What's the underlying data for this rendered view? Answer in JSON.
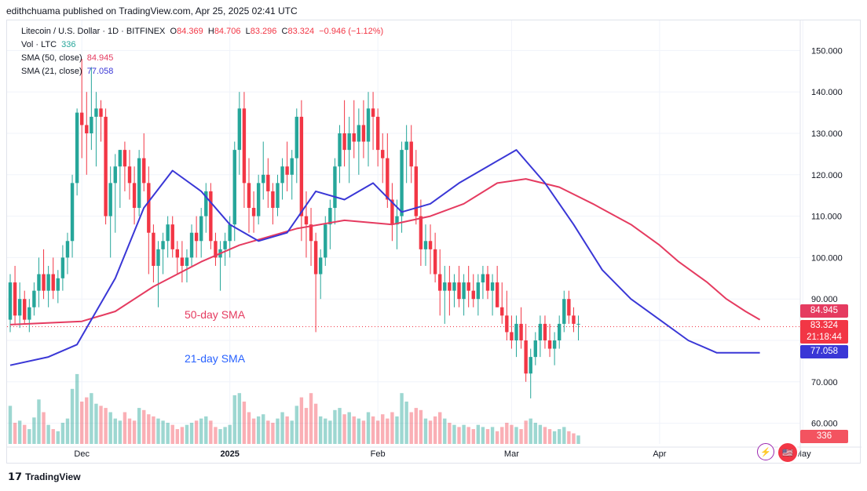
{
  "publisher": "edithchuama published on TradingView.com, Apr 25, 2025 02:41 UTC",
  "legend": {
    "symbol": "Litecoin / U.S. Dollar · 1D · BITFINEX",
    "o_label": "O",
    "o": "84.369",
    "h_label": "H",
    "h": "84.706",
    "l_label": "L",
    "l": "83.296",
    "c_label": "C",
    "c": "83.324",
    "change": "−0.946 (−1.12%)",
    "vol_label": "Vol · LTC",
    "vol": "336",
    "sma50_label": "SMA (50, close)",
    "sma50": "84.945",
    "sma21_label": "SMA (21, close)",
    "sma21": "77.058"
  },
  "annotations": {
    "sma50": "50-day SMA",
    "sma21": "21-day SMA"
  },
  "price_tags": {
    "sma50": "84.945",
    "last_price": "83.324",
    "countdown": "21:18:44",
    "sma21": "77.058",
    "volume": "336"
  },
  "footer": {
    "brand": "TradingView"
  },
  "colors": {
    "up": "#26a69a",
    "down": "#f23645",
    "sma50": "#e53b60",
    "sma21": "#3a37d6"
  },
  "chart_data": {
    "type": "candlestick",
    "ylim": [
      55,
      155
    ],
    "y_ticks": [
      60,
      70,
      80,
      90,
      100,
      110,
      120,
      130,
      140,
      150
    ],
    "y_tick_labels": [
      "60.000",
      "70.000",
      "",
      "90.000",
      "100.000",
      "110.000",
      "120.000",
      "130.000",
      "140.000",
      "150.000"
    ],
    "x_ticks": [
      {
        "label": "Dec",
        "day": 15
      },
      {
        "label": "2025",
        "day": 46
      },
      {
        "label": "Feb",
        "day": 77
      },
      {
        "label": "Mar",
        "day": 105
      },
      {
        "label": "Apr",
        "day": 136
      },
      {
        "label": "May",
        "day": 166
      }
    ],
    "ohlcv": [
      [
        85,
        96,
        82,
        94,
        36
      ],
      [
        94,
        98,
        84,
        86,
        20
      ],
      [
        86,
        94,
        83,
        90,
        22
      ],
      [
        90,
        92,
        84,
        85,
        18
      ],
      [
        85,
        90,
        82,
        88,
        14
      ],
      [
        88,
        94,
        86,
        92,
        25
      ],
      [
        92,
        100,
        88,
        96,
        42
      ],
      [
        96,
        102,
        90,
        92,
        30
      ],
      [
        92,
        98,
        88,
        96,
        18
      ],
      [
        96,
        100,
        90,
        92,
        14
      ],
      [
        92,
        97,
        89,
        95,
        12
      ],
      [
        95,
        103,
        92,
        100,
        20
      ],
      [
        100,
        106,
        96,
        104,
        24
      ],
      [
        104,
        120,
        100,
        118,
        52
      ],
      [
        118,
        136,
        115,
        135,
        66
      ],
      [
        135,
        148,
        124,
        132,
        40
      ],
      [
        132,
        140,
        120,
        130,
        44
      ],
      [
        130,
        146,
        126,
        134,
        48
      ],
      [
        134,
        140,
        122,
        136,
        38
      ],
      [
        136,
        138,
        128,
        134,
        36
      ],
      [
        134,
        136,
        108,
        110,
        34
      ],
      [
        110,
        122,
        100,
        118,
        30
      ],
      [
        118,
        125,
        106,
        122,
        24
      ],
      [
        122,
        126,
        112,
        126,
        22
      ],
      [
        126,
        128,
        116,
        122,
        30
      ],
      [
        122,
        126,
        114,
        118,
        24
      ],
      [
        118,
        122,
        108,
        112,
        22
      ],
      [
        112,
        126,
        110,
        124,
        34
      ],
      [
        124,
        130,
        116,
        118,
        32
      ],
      [
        118,
        122,
        96,
        106,
        28
      ],
      [
        106,
        108,
        94,
        98,
        26
      ],
      [
        98,
        104,
        88,
        102,
        24
      ],
      [
        102,
        106,
        96,
        104,
        22
      ],
      [
        104,
        110,
        100,
        108,
        20
      ],
      [
        108,
        110,
        100,
        102,
        18
      ],
      [
        102,
        104,
        96,
        100,
        14
      ],
      [
        100,
        104,
        94,
        98,
        16
      ],
      [
        98,
        102,
        94,
        100,
        18
      ],
      [
        100,
        108,
        98,
        106,
        20
      ],
      [
        106,
        110,
        100,
        104,
        22
      ],
      [
        104,
        112,
        100,
        110,
        24
      ],
      [
        110,
        118,
        106,
        116,
        26
      ],
      [
        116,
        118,
        102,
        104,
        22
      ],
      [
        104,
        106,
        98,
        100,
        16
      ],
      [
        100,
        104,
        92,
        102,
        14
      ],
      [
        102,
        106,
        98,
        104,
        16
      ],
      [
        104,
        110,
        100,
        108,
        18
      ],
      [
        108,
        128,
        104,
        126,
        46
      ],
      [
        126,
        140,
        120,
        136,
        48
      ],
      [
        136,
        140,
        112,
        118,
        40
      ],
      [
        118,
        124,
        106,
        112,
        30
      ],
      [
        112,
        116,
        106,
        110,
        24
      ],
      [
        110,
        120,
        108,
        118,
        26
      ],
      [
        118,
        128,
        114,
        120,
        28
      ],
      [
        120,
        124,
        112,
        116,
        22
      ],
      [
        116,
        118,
        108,
        112,
        20
      ],
      [
        112,
        120,
        110,
        118,
        24
      ],
      [
        118,
        124,
        114,
        122,
        30
      ],
      [
        122,
        128,
        116,
        120,
        26
      ],
      [
        120,
        126,
        114,
        124,
        22
      ],
      [
        124,
        136,
        118,
        134,
        36
      ],
      [
        134,
        138,
        104,
        110,
        44
      ],
      [
        110,
        116,
        100,
        108,
        34
      ],
      [
        108,
        112,
        98,
        104,
        48
      ],
      [
        104,
        106,
        82,
        96,
        38
      ],
      [
        96,
        102,
        90,
        100,
        26
      ],
      [
        100,
        110,
        98,
        108,
        24
      ],
      [
        108,
        114,
        102,
        112,
        22
      ],
      [
        112,
        124,
        108,
        122,
        32
      ],
      [
        122,
        132,
        118,
        130,
        34
      ],
      [
        130,
        138,
        122,
        126,
        28
      ],
      [
        126,
        134,
        118,
        130,
        30
      ],
      [
        130,
        138,
        124,
        128,
        26
      ],
      [
        128,
        136,
        120,
        132,
        24
      ],
      [
        132,
        138,
        124,
        128,
        22
      ],
      [
        128,
        140,
        122,
        136,
        30
      ],
      [
        136,
        140,
        126,
        134,
        26
      ],
      [
        134,
        136,
        122,
        126,
        22
      ],
      [
        126,
        130,
        118,
        124,
        28
      ],
      [
        124,
        130,
        112,
        114,
        24
      ],
      [
        114,
        118,
        104,
        108,
        30
      ],
      [
        108,
        114,
        102,
        110,
        26
      ],
      [
        110,
        128,
        106,
        126,
        48
      ],
      [
        126,
        132,
        118,
        128,
        40
      ],
      [
        128,
        132,
        118,
        122,
        30
      ],
      [
        122,
        126,
        108,
        110,
        34
      ],
      [
        110,
        114,
        98,
        102,
        32
      ],
      [
        102,
        108,
        98,
        104,
        24
      ],
      [
        104,
        108,
        96,
        102,
        22
      ],
      [
        102,
        106,
        94,
        96,
        26
      ],
      [
        96,
        102,
        86,
        92,
        30
      ],
      [
        92,
        98,
        84,
        94,
        24
      ],
      [
        94,
        98,
        86,
        92,
        20
      ],
      [
        92,
        96,
        88,
        94,
        18
      ],
      [
        94,
        98,
        88,
        90,
        16
      ],
      [
        90,
        96,
        86,
        94,
        18
      ],
      [
        94,
        98,
        88,
        92,
        16
      ],
      [
        92,
        96,
        88,
        90,
        14
      ],
      [
        90,
        96,
        86,
        94,
        18
      ],
      [
        94,
        98,
        90,
        96,
        16
      ],
      [
        96,
        98,
        90,
        92,
        14
      ],
      [
        92,
        96,
        86,
        94,
        16
      ],
      [
        94,
        98,
        88,
        88,
        12
      ],
      [
        88,
        94,
        84,
        86,
        16
      ],
      [
        86,
        92,
        80,
        82,
        20
      ],
      [
        82,
        86,
        78,
        80,
        18
      ],
      [
        80,
        86,
        76,
        84,
        16
      ],
      [
        84,
        88,
        78,
        80,
        14
      ],
      [
        80,
        84,
        70,
        72,
        22
      ],
      [
        72,
        78,
        66,
        76,
        24
      ],
      [
        76,
        82,
        74,
        80,
        20
      ],
      [
        80,
        86,
        76,
        84,
        18
      ],
      [
        84,
        86,
        78,
        80,
        16
      ],
      [
        80,
        84,
        76,
        78,
        14
      ],
      [
        78,
        82,
        74,
        80,
        12
      ],
      [
        80,
        86,
        78,
        84,
        14
      ],
      [
        84,
        92,
        82,
        90,
        16
      ],
      [
        90,
        92,
        84,
        86,
        12
      ],
      [
        86,
        88,
        82,
        84,
        10
      ],
      [
        84,
        86,
        80,
        84,
        8
      ]
    ],
    "sma50": [
      [
        0,
        83.8
      ],
      [
        15,
        84.6
      ],
      [
        22,
        87
      ],
      [
        30,
        93
      ],
      [
        40,
        99
      ],
      [
        48,
        103
      ],
      [
        60,
        107
      ],
      [
        70,
        109
      ],
      [
        80,
        108
      ],
      [
        88,
        110
      ],
      [
        95,
        113
      ],
      [
        102,
        118
      ],
      [
        108,
        119
      ],
      [
        115,
        117
      ],
      [
        122,
        113
      ],
      [
        130,
        108
      ],
      [
        136,
        103
      ],
      [
        140,
        99
      ],
      [
        146,
        94
      ],
      [
        150,
        90
      ],
      [
        154,
        87
      ],
      [
        157,
        85
      ]
    ],
    "sma21": [
      [
        0,
        74
      ],
      [
        8,
        76
      ],
      [
        14,
        79
      ],
      [
        22,
        95
      ],
      [
        28,
        112
      ],
      [
        34,
        121
      ],
      [
        40,
        116
      ],
      [
        46,
        108
      ],
      [
        52,
        104
      ],
      [
        58,
        106
      ],
      [
        64,
        116
      ],
      [
        70,
        114
      ],
      [
        76,
        118
      ],
      [
        82,
        111
      ],
      [
        88,
        113
      ],
      [
        94,
        118
      ],
      [
        100,
        122
      ],
      [
        106,
        126
      ],
      [
        112,
        118
      ],
      [
        118,
        108
      ],
      [
        124,
        97
      ],
      [
        130,
        90
      ],
      [
        136,
        85
      ],
      [
        142,
        80
      ],
      [
        148,
        77
      ],
      [
        153,
        77
      ],
      [
        157,
        77
      ]
    ]
  }
}
